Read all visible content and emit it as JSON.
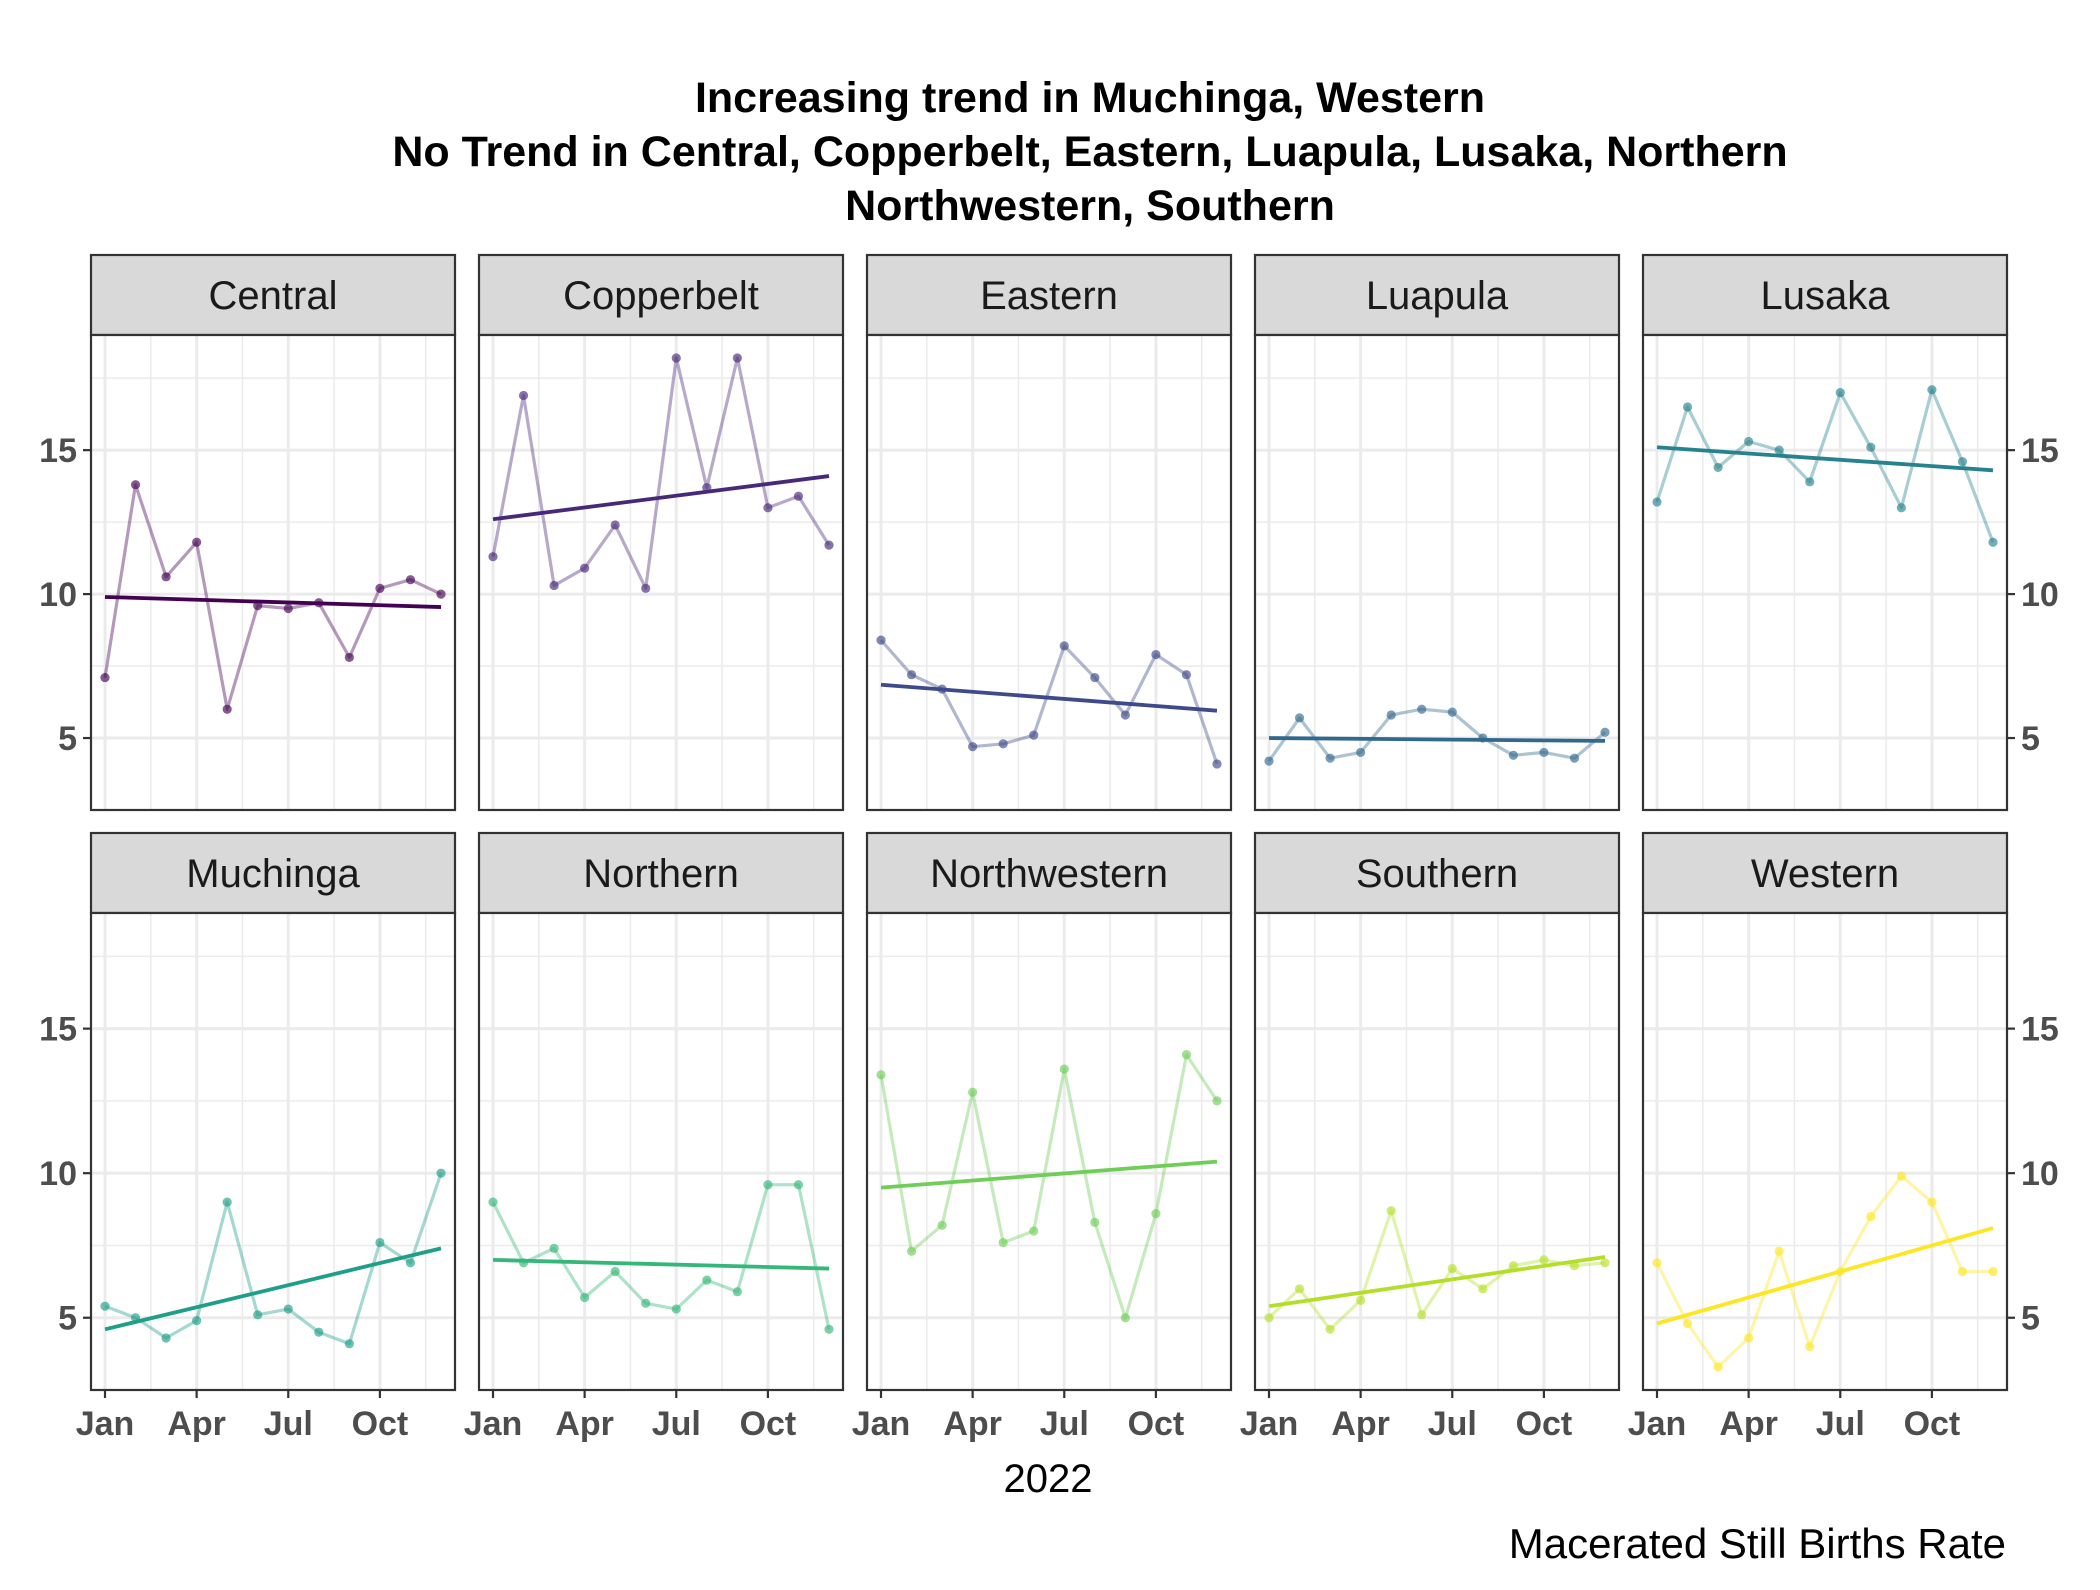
{
  "chart_data": {
    "type": "line",
    "title": [
      "Increasing trend in Muchinga, Western",
      "No Trend in Central, Copperbelt, Eastern, Luapula, Lusaka, Northern",
      "Northwestern, Southern"
    ],
    "xlabel": "2022",
    "caption": "Macerated Still Births Rate",
    "x": [
      "2022-01",
      "2022-02",
      "2022-03",
      "2022-04",
      "2022-05",
      "2022-06",
      "2022-07",
      "2022-08",
      "2022-09",
      "2022-10",
      "2022-11",
      "2022-12"
    ],
    "x_ticks": [
      "Jan",
      "Apr",
      "Jul",
      "Oct"
    ],
    "y_ticks": [
      5,
      10,
      15
    ],
    "ylim": [
      2.5,
      19
    ],
    "grid": true,
    "facets": {
      "rows": 2,
      "cols": 5
    },
    "series": [
      {
        "name": "Central",
        "color": "#440154",
        "values": [
          7.1,
          13.8,
          10.6,
          11.8,
          6.0,
          9.6,
          9.5,
          9.7,
          7.8,
          10.2,
          10.5,
          10.0
        ],
        "trend": [
          9.9,
          9.55
        ]
      },
      {
        "name": "Copperbelt",
        "color": "#482878",
        "values": [
          11.3,
          16.9,
          10.3,
          10.9,
          12.4,
          10.2,
          18.2,
          13.7,
          18.2,
          13.0,
          13.4,
          11.7
        ],
        "trend": [
          12.6,
          14.1
        ]
      },
      {
        "name": "Eastern",
        "color": "#3E4A89",
        "values": [
          8.4,
          7.2,
          6.7,
          4.7,
          4.8,
          5.1,
          8.2,
          7.1,
          5.8,
          7.9,
          7.2,
          4.1
        ],
        "trend": [
          6.85,
          5.95
        ]
      },
      {
        "name": "Luapula",
        "color": "#31688E",
        "values": [
          4.2,
          5.7,
          4.3,
          4.5,
          5.8,
          6.0,
          5.9,
          5.0,
          4.4,
          4.5,
          4.3,
          5.2
        ],
        "trend": [
          5.0,
          4.9
        ]
      },
      {
        "name": "Lusaka",
        "color": "#26828E",
        "values": [
          13.2,
          16.5,
          14.4,
          15.3,
          15.0,
          13.9,
          17.0,
          15.1,
          13.0,
          17.1,
          14.6,
          11.8
        ],
        "trend": [
          15.1,
          14.3
        ]
      },
      {
        "name": "Muchinga",
        "color": "#1F9E89",
        "values": [
          5.4,
          5.0,
          4.3,
          4.9,
          9.0,
          5.1,
          5.3,
          4.5,
          4.1,
          7.6,
          6.9,
          10.0
        ],
        "trend": [
          4.6,
          7.4
        ]
      },
      {
        "name": "Northern",
        "color": "#35B779",
        "values": [
          9.0,
          6.9,
          7.4,
          5.7,
          6.6,
          5.5,
          5.3,
          6.3,
          5.9,
          9.6,
          9.6,
          4.6
        ],
        "trend": [
          7.0,
          6.7
        ]
      },
      {
        "name": "Northwestern",
        "color": "#6ECE58",
        "values": [
          13.4,
          7.3,
          8.2,
          12.8,
          7.6,
          8.0,
          13.6,
          8.3,
          5.0,
          8.6,
          14.1,
          12.5
        ],
        "trend": [
          9.5,
          10.4
        ]
      },
      {
        "name": "Southern",
        "color": "#B5DE2B",
        "values": [
          5.0,
          6.0,
          4.6,
          5.6,
          8.7,
          5.1,
          6.7,
          6.0,
          6.8,
          7.0,
          6.8,
          6.9
        ],
        "trend": [
          5.4,
          7.1
        ]
      },
      {
        "name": "Western",
        "color": "#FDE725",
        "values": [
          6.9,
          4.8,
          3.3,
          4.3,
          7.3,
          4.0,
          6.6,
          8.5,
          9.9,
          9.0,
          6.6,
          6.6
        ],
        "trend": [
          4.8,
          8.1
        ]
      }
    ]
  }
}
